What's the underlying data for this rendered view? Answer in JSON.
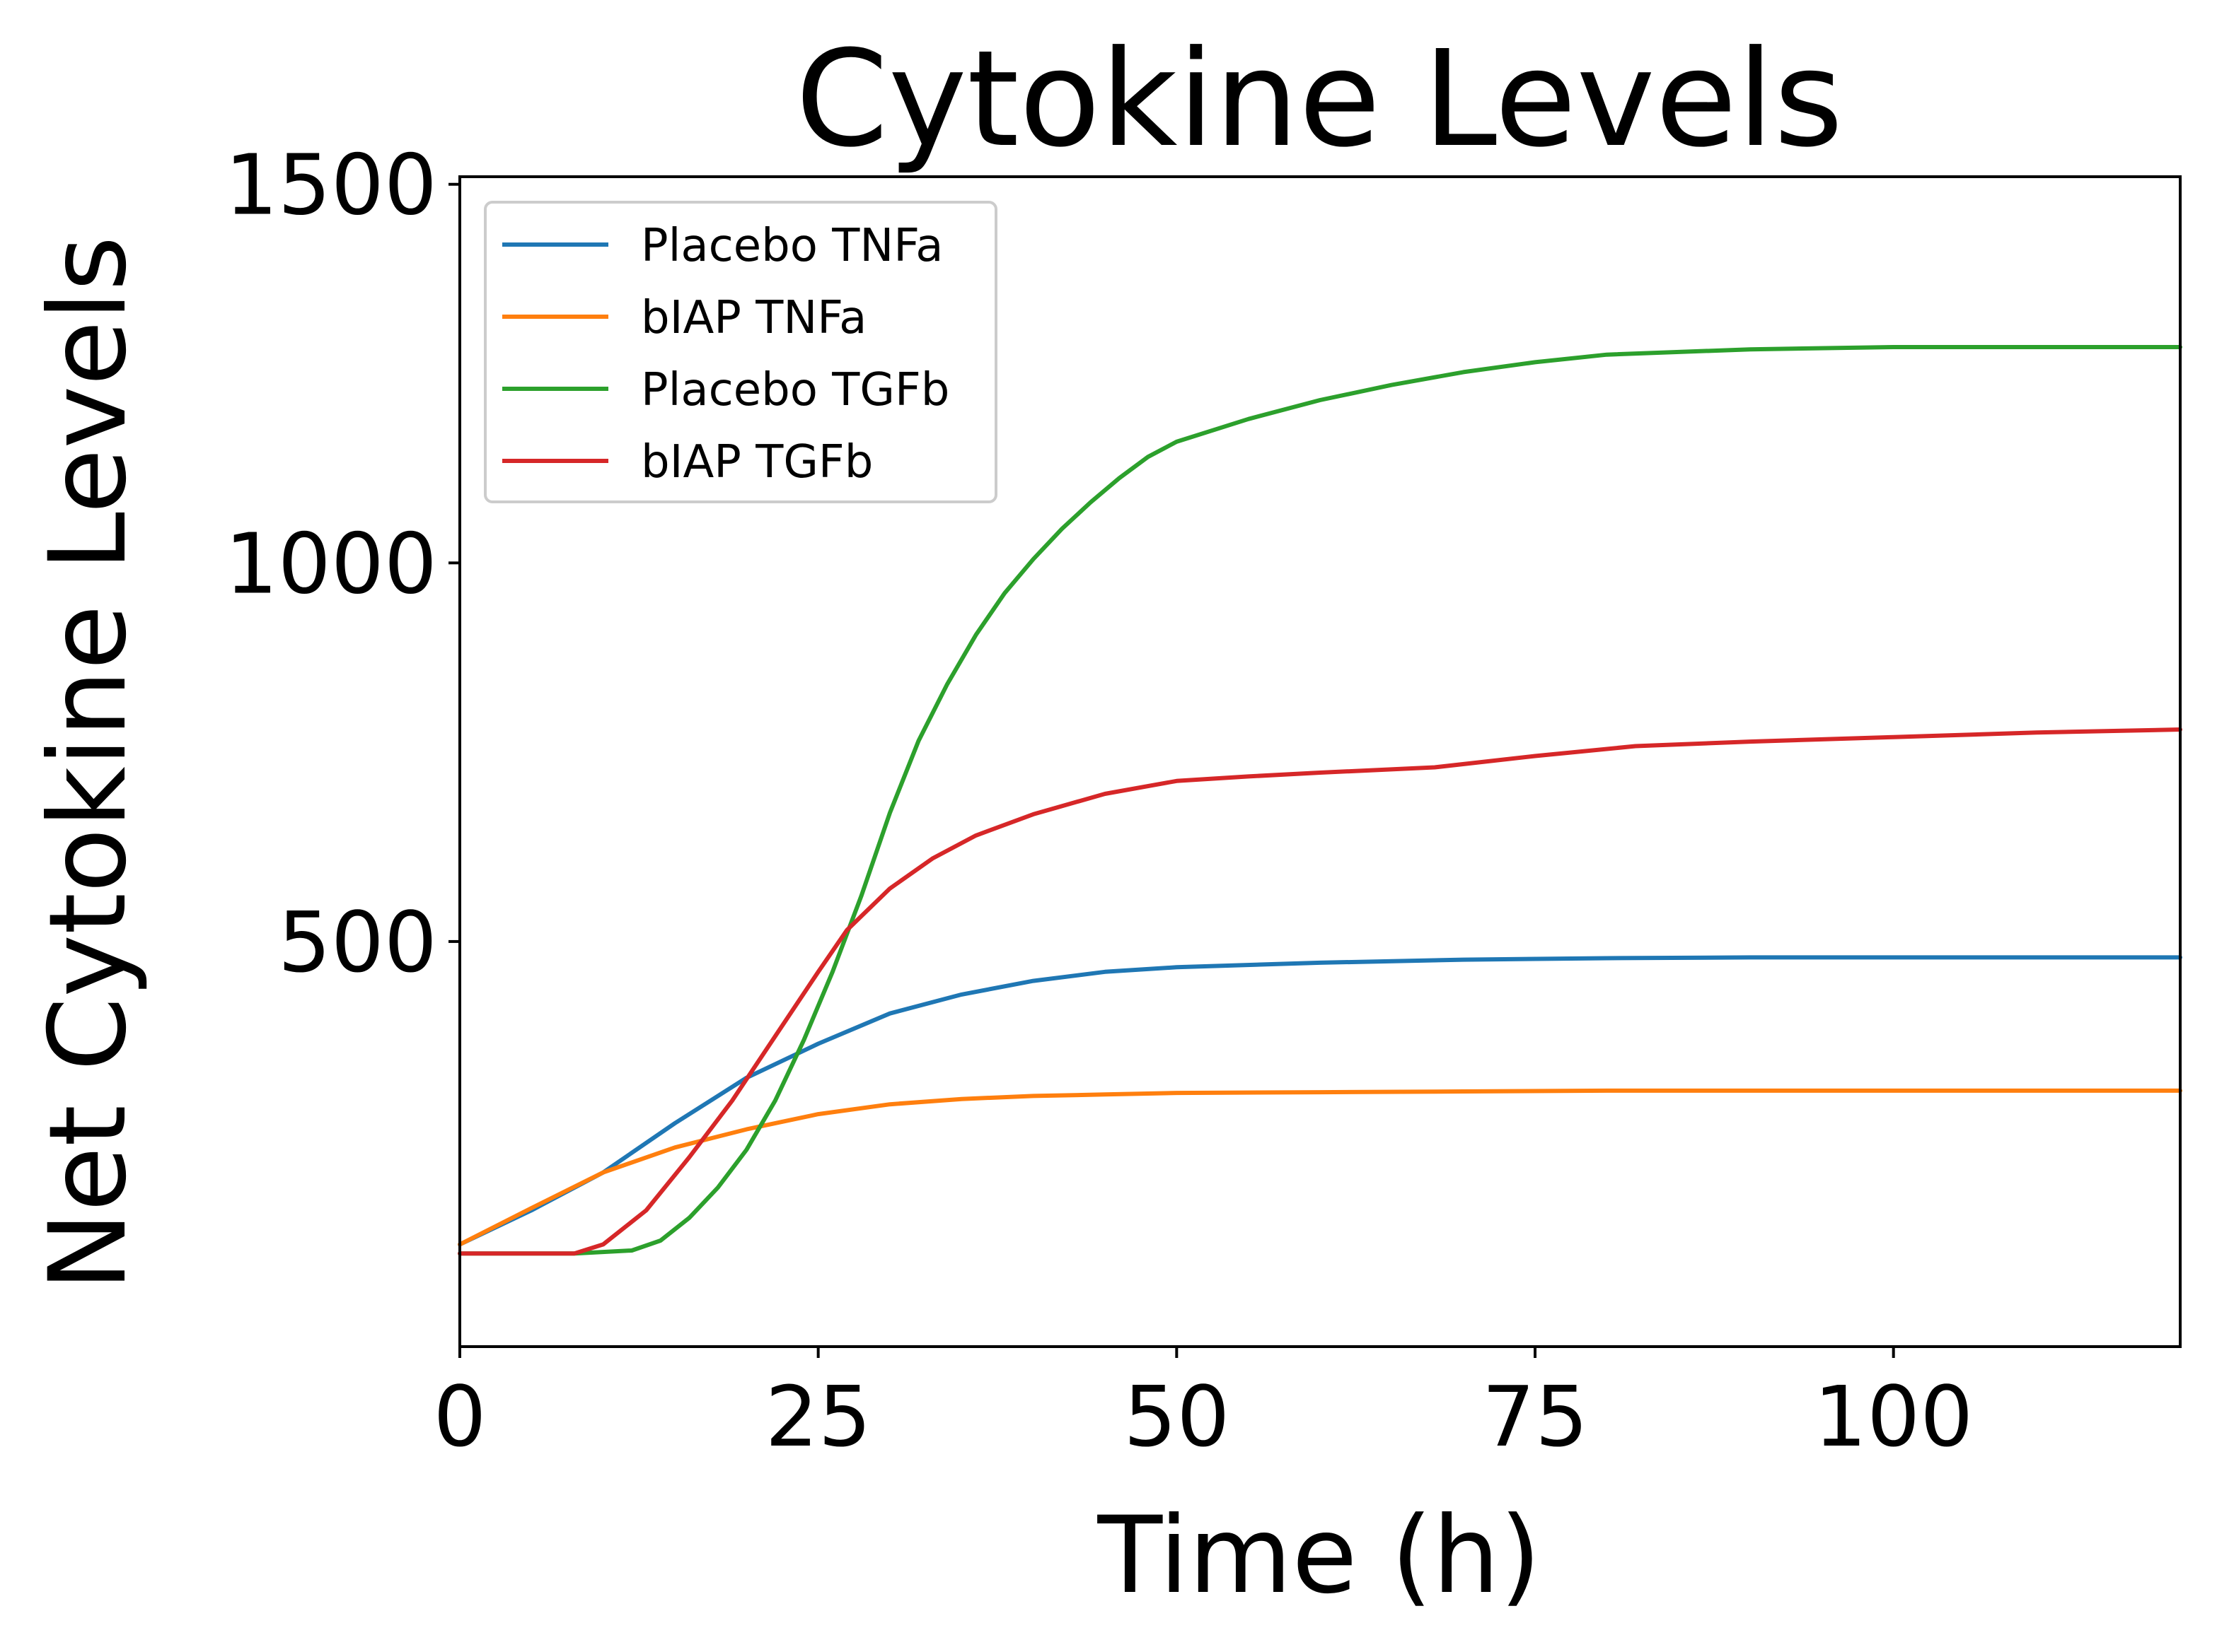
{
  "chart_data": {
    "type": "line",
    "title": "Cytokine Levels",
    "xlabel": "Time (h)",
    "ylabel": "Net Cytokine Levels",
    "xlim": [
      0,
      120
    ],
    "ylim": [
      0,
      1500
    ],
    "xticks": [
      0,
      25,
      50,
      75,
      100
    ],
    "yticks": [
      500,
      1000,
      1500
    ],
    "grid": false,
    "legend_position": "top-left",
    "series": [
      {
        "name": "Placebo TNFa",
        "color": "#1f77b4",
        "points": [
          [
            0,
            100
          ],
          [
            5,
            145
          ],
          [
            10,
            195
          ],
          [
            15,
            260
          ],
          [
            20,
            320
          ],
          [
            25,
            365
          ],
          [
            30,
            405
          ],
          [
            35,
            430
          ],
          [
            40,
            448
          ],
          [
            45,
            460
          ],
          [
            50,
            466
          ],
          [
            60,
            472
          ],
          [
            70,
            476
          ],
          [
            80,
            478
          ],
          [
            90,
            479
          ],
          [
            100,
            479
          ],
          [
            120,
            479
          ]
        ]
      },
      {
        "name": "bIAP TNFa",
        "color": "#ff7f0e",
        "points": [
          [
            0,
            100
          ],
          [
            5,
            148
          ],
          [
            10,
            195
          ],
          [
            15,
            228
          ],
          [
            20,
            252
          ],
          [
            25,
            272
          ],
          [
            30,
            285
          ],
          [
            35,
            292
          ],
          [
            40,
            296
          ],
          [
            45,
            298
          ],
          [
            50,
            300
          ],
          [
            60,
            301
          ],
          [
            70,
            302
          ],
          [
            80,
            303
          ],
          [
            100,
            303
          ],
          [
            120,
            303
          ]
        ]
      },
      {
        "name": "Placebo TGFb",
        "color": "#2ca02c",
        "points": [
          [
            0,
            88
          ],
          [
            8,
            88
          ],
          [
            12,
            92
          ],
          [
            14,
            105
          ],
          [
            16,
            135
          ],
          [
            18,
            175
          ],
          [
            20,
            225
          ],
          [
            22,
            290
          ],
          [
            24,
            370
          ],
          [
            26,
            460
          ],
          [
            28,
            560
          ],
          [
            30,
            670
          ],
          [
            32,
            765
          ],
          [
            34,
            840
          ],
          [
            36,
            905
          ],
          [
            38,
            960
          ],
          [
            40,
            1005
          ],
          [
            42,
            1045
          ],
          [
            44,
            1080
          ],
          [
            46,
            1112
          ],
          [
            48,
            1140
          ],
          [
            50,
            1160
          ],
          [
            55,
            1190
          ],
          [
            60,
            1215
          ],
          [
            65,
            1235
          ],
          [
            70,
            1252
          ],
          [
            75,
            1265
          ],
          [
            80,
            1275
          ],
          [
            90,
            1282
          ],
          [
            100,
            1285
          ],
          [
            120,
            1285
          ]
        ]
      },
      {
        "name": "bIAP TGFb",
        "color": "#d62728",
        "points": [
          [
            0,
            88
          ],
          [
            8,
            88
          ],
          [
            10,
            100
          ],
          [
            13,
            145
          ],
          [
            16,
            215
          ],
          [
            19,
            290
          ],
          [
            22,
            375
          ],
          [
            25,
            460
          ],
          [
            27,
            515
          ],
          [
            30,
            570
          ],
          [
            33,
            610
          ],
          [
            36,
            640
          ],
          [
            40,
            668
          ],
          [
            45,
            695
          ],
          [
            50,
            712
          ],
          [
            55,
            718
          ],
          [
            60,
            723
          ],
          [
            68,
            730
          ],
          [
            75,
            745
          ],
          [
            82,
            758
          ],
          [
            90,
            764
          ],
          [
            100,
            770
          ],
          [
            110,
            776
          ],
          [
            120,
            780
          ]
        ]
      }
    ]
  }
}
